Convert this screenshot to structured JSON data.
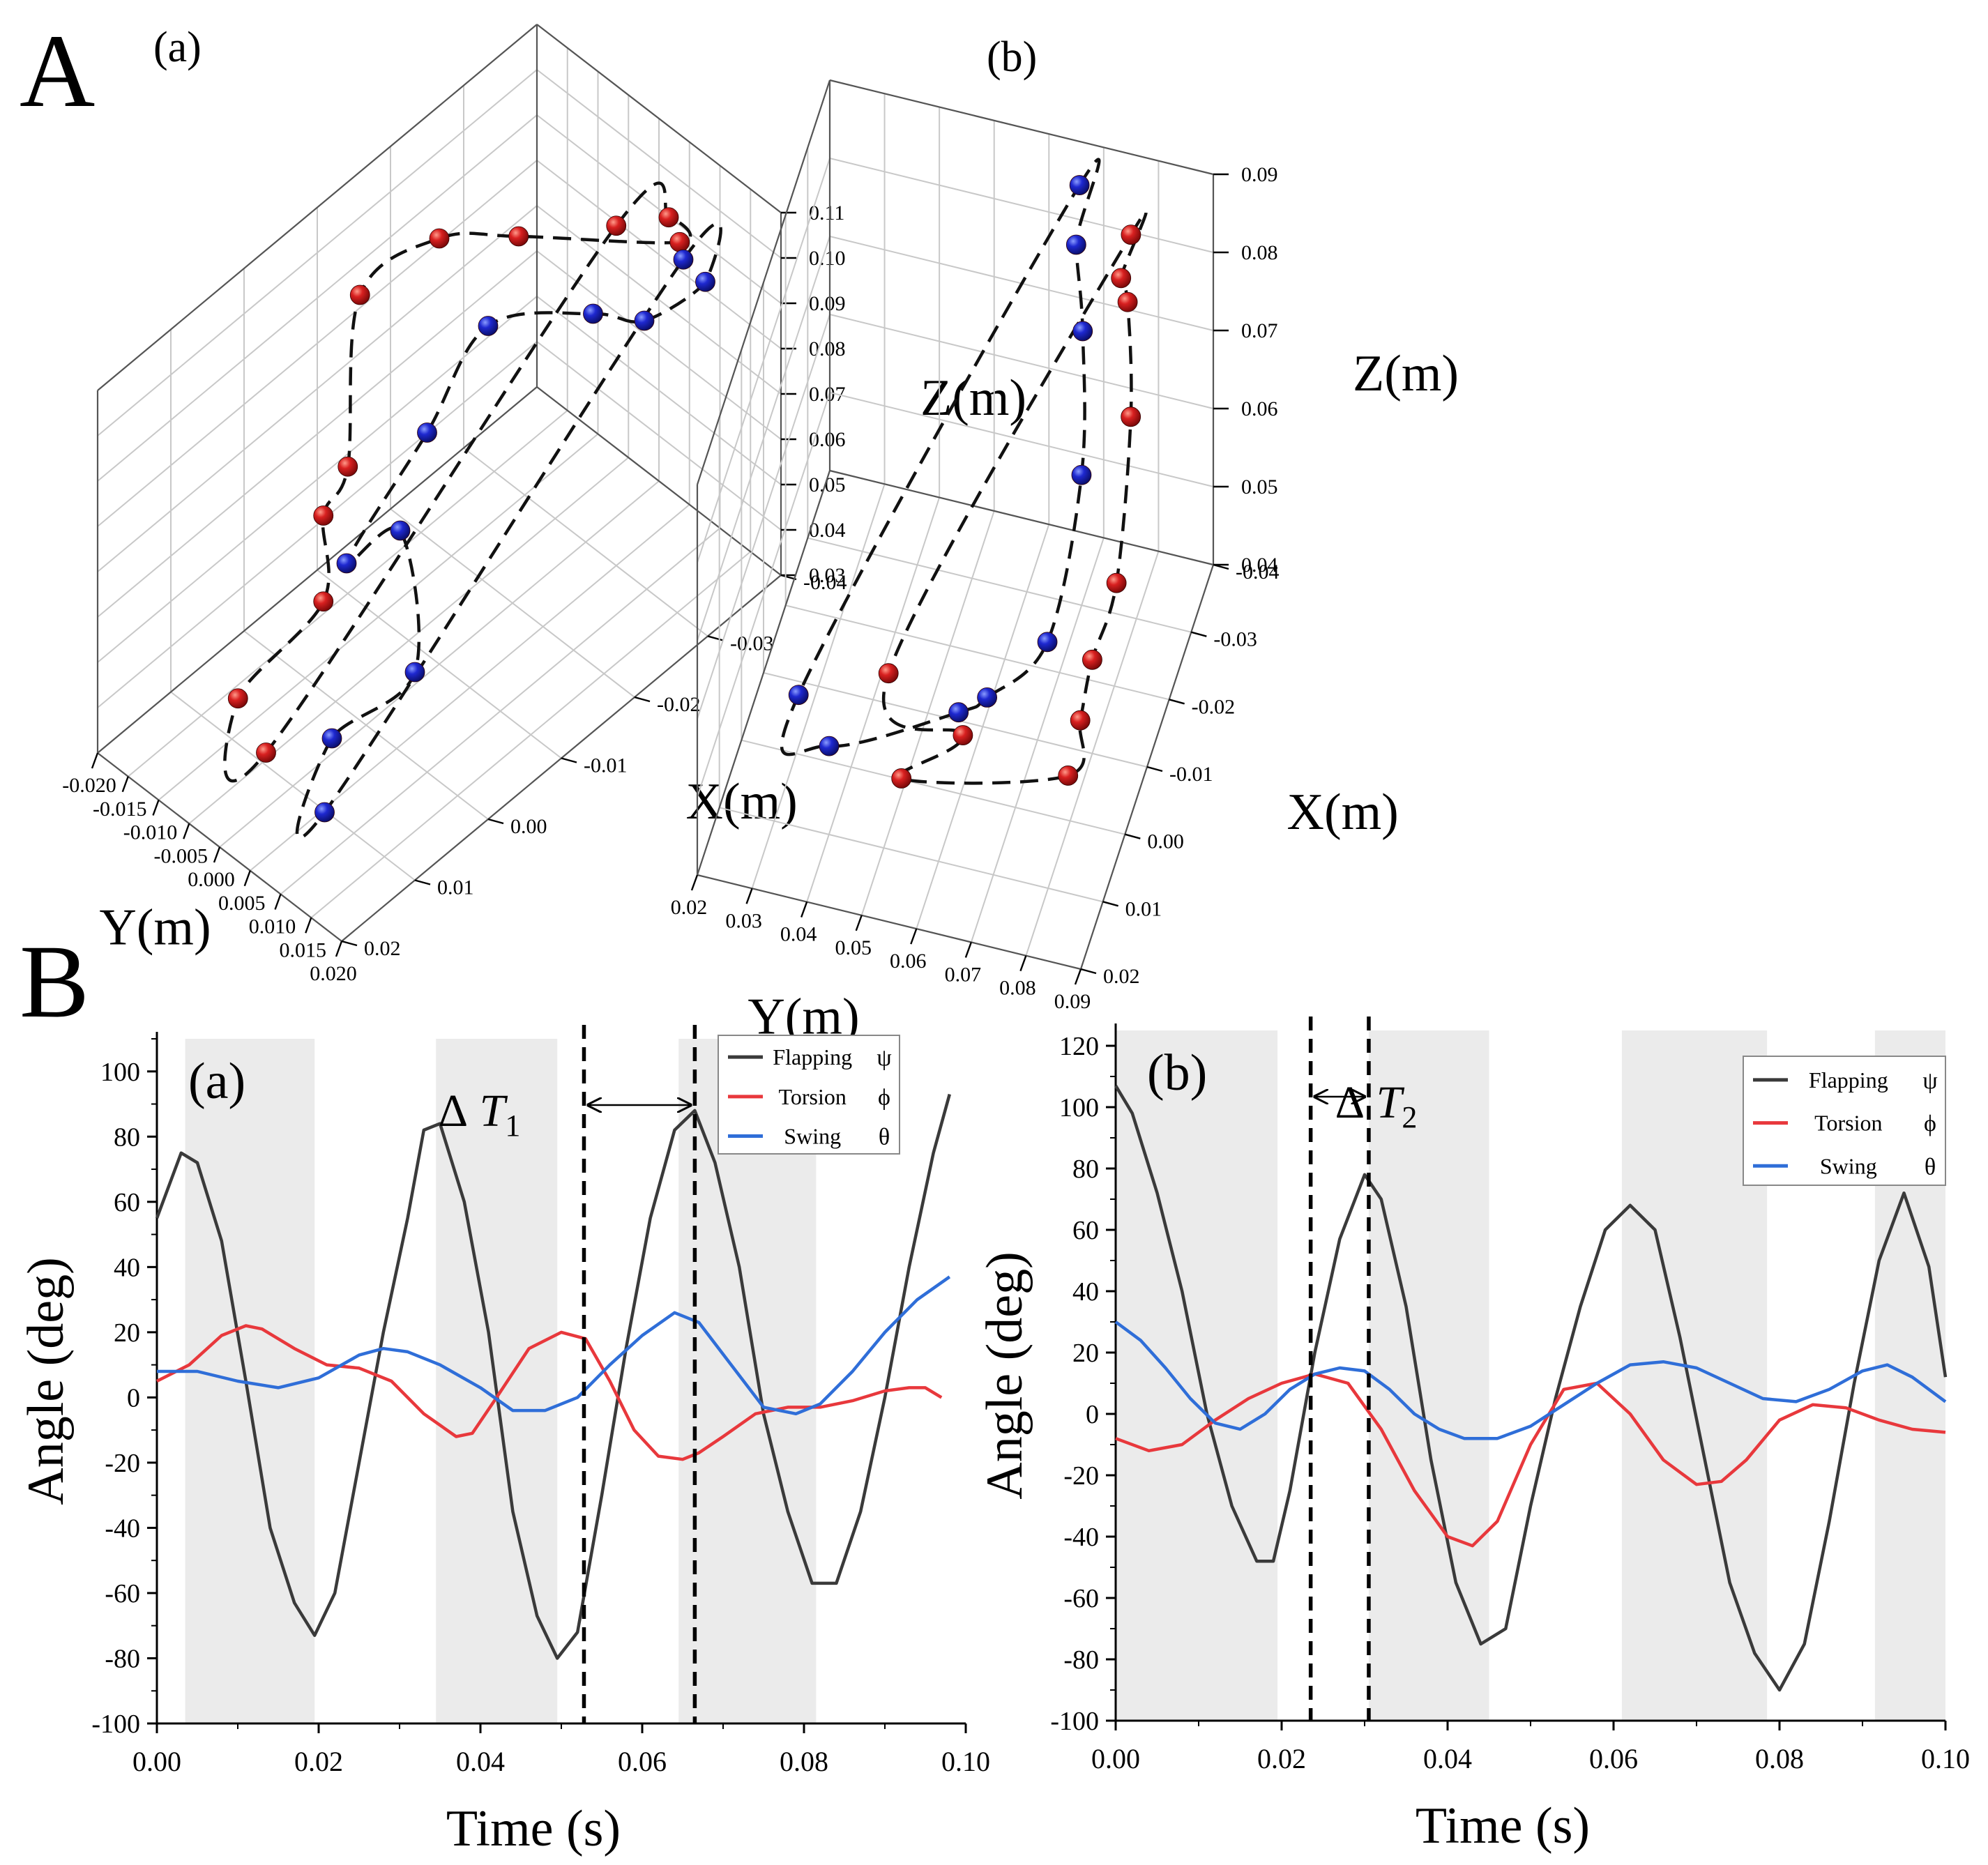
{
  "figure": {
    "panel_A_label": "A",
    "panel_B_label": "B"
  },
  "chart_data": [
    {
      "id": "Aa",
      "type": "scatter3d",
      "sub_label": "(a)",
      "xlabel": "X(m)",
      "ylabel": "Y(m)",
      "zlabel": "Z(m)",
      "z_ticks": [
        "0.03",
        "0.04",
        "0.05",
        "0.06",
        "0.07",
        "0.08",
        "0.09",
        "0.10",
        "0.11"
      ],
      "x_ticks": [
        "-0.04",
        "-0.03",
        "-0.02",
        "-0.01",
        "0.00",
        "0.01",
        "0.02"
      ],
      "y_ticks": [
        "-0.020",
        "-0.015",
        "-0.010",
        "-0.005",
        "0.000",
        "0.005",
        "0.010",
        "0.015",
        "0.020"
      ],
      "xlim": [
        -0.04,
        0.02
      ],
      "ylim": [
        -0.02,
        0.02
      ],
      "zlim": [
        0.03,
        0.11
      ],
      "colors": {
        "red": "#d01818",
        "blue": "#1a22cc"
      },
      "series": [
        {
          "name": "red",
          "points": [
            [
              -0.03,
              0.005,
              0.105
            ],
            [
              -0.033,
              0.01,
              0.108
            ],
            [
              -0.032,
              0.013,
              0.107
            ],
            [
              -0.025,
              -0.005,
              0.099
            ],
            [
              -0.02,
              -0.012,
              0.098
            ],
            [
              -0.015,
              -0.019,
              0.085
            ],
            [
              -0.01,
              -0.015,
              0.058
            ],
            [
              -0.005,
              -0.013,
              0.056
            ],
            [
              0.0,
              -0.007,
              0.05
            ],
            [
              0.01,
              -0.009,
              0.04
            ],
            [
              0.012,
              -0.002,
              0.038
            ]
          ]
        },
        {
          "name": "blue",
          "points": [
            [
              -0.035,
              0.01,
              0.096
            ],
            [
              -0.033,
              0.016,
              0.1
            ],
            [
              -0.028,
              0.012,
              0.094
            ],
            [
              -0.026,
              0.006,
              0.092
            ],
            [
              -0.02,
              -0.004,
              0.087
            ],
            [
              -0.01,
              -0.002,
              0.079
            ],
            [
              -0.004,
              -0.008,
              0.052
            ],
            [
              -0.008,
              -0.004,
              0.058
            ],
            [
              0.0,
              0.008,
              0.05
            ],
            [
              0.008,
              0.004,
              0.042
            ],
            [
              0.014,
              0.01,
              0.04
            ]
          ]
        }
      ]
    },
    {
      "id": "Ab",
      "type": "scatter3d",
      "sub_label": "(b)",
      "xlabel": "X(m)",
      "ylabel": "Y(m)",
      "zlabel": "Z(m)",
      "z_ticks": [
        "0.04",
        "0.05",
        "0.06",
        "0.07",
        "0.08",
        "0.09"
      ],
      "x_ticks": [
        "-0.04",
        "-0.03",
        "-0.02",
        "-0.01",
        "0.00",
        "0.01",
        "0.02"
      ],
      "y_ticks": [
        "0.02",
        "0.03",
        "0.04",
        "0.05",
        "0.06",
        "0.07",
        "0.08",
        "0.09"
      ],
      "xlim": [
        -0.04,
        0.02
      ],
      "ylim": [
        0.02,
        0.09
      ],
      "zlim": [
        0.04,
        0.09
      ],
      "colors": {
        "red": "#d01818",
        "blue": "#1a22cc"
      },
      "series": [
        {
          "name": "red",
          "points": [
            [
              -0.03,
              0.079,
              0.089
            ],
            [
              -0.028,
              0.078,
              0.085
            ],
            [
              -0.026,
              0.08,
              0.084
            ],
            [
              -0.02,
              0.083,
              0.075
            ],
            [
              -0.016,
              0.082,
              0.057
            ],
            [
              -0.01,
              0.08,
              0.052
            ],
            [
              -0.012,
              0.077,
              0.042
            ],
            [
              -0.004,
              0.078,
              0.042
            ],
            [
              0.002,
              0.05,
              0.042
            ],
            [
              -0.006,
              0.058,
              0.042
            ],
            [
              -0.012,
              0.042,
              0.042
            ]
          ]
        },
        {
          "name": "blue",
          "points": [
            [
              -0.034,
              0.068,
              0.09
            ],
            [
              -0.03,
              0.069,
              0.086
            ],
            [
              -0.028,
              0.071,
              0.077
            ],
            [
              -0.02,
              0.074,
              0.066
            ],
            [
              -0.012,
              0.071,
              0.051
            ],
            [
              -0.012,
              0.06,
              0.042
            ],
            [
              -0.009,
              0.056,
              0.042
            ],
            [
              0.0,
              0.036,
              0.042
            ],
            [
              -0.006,
              0.028,
              0.042
            ]
          ]
        }
      ]
    },
    {
      "id": "Ba",
      "type": "line",
      "sub_label": "(a)",
      "xlabel": "Time (s)",
      "ylabel": "Angle (deg)",
      "xlim": [
        0,
        0.1
      ],
      "ylim": [
        -100,
        110
      ],
      "x_ticks": [
        "0.00",
        "0.02",
        "0.04",
        "0.06",
        "0.08",
        "0.10"
      ],
      "y_ticks": [
        "100",
        "80",
        "60",
        "40",
        "20",
        "0",
        "-20",
        "-40",
        "-60",
        "-80",
        "-100"
      ],
      "shaded_intervals": [
        [
          0.0035,
          0.0195
        ],
        [
          0.0345,
          0.0495
        ],
        [
          0.0645,
          0.0815
        ]
      ],
      "vlines": [
        0.0528,
        0.0665
      ],
      "annotation": {
        "label": "Δ",
        "sub": "1",
        "symbol": "T",
        "x_from": 0.0528,
        "x_to": 0.0665
      },
      "series": [
        {
          "name": "Flapping",
          "symbol": "ψ",
          "color": "#3a3a3a",
          "x": [
            0,
            0.003,
            0.005,
            0.008,
            0.011,
            0.014,
            0.017,
            0.0195,
            0.022,
            0.025,
            0.028,
            0.031,
            0.033,
            0.035,
            0.038,
            0.041,
            0.044,
            0.047,
            0.0495,
            0.052,
            0.055,
            0.058,
            0.061,
            0.064,
            0.0665,
            0.069,
            0.072,
            0.075,
            0.078,
            0.081,
            0.084,
            0.087,
            0.09,
            0.093,
            0.096,
            0.098
          ],
          "y": [
            55,
            75,
            72,
            48,
            5,
            -40,
            -63,
            -73,
            -60,
            -20,
            20,
            55,
            82,
            84,
            60,
            20,
            -35,
            -67,
            -80,
            -72,
            -30,
            15,
            55,
            82,
            88,
            72,
            40,
            -5,
            -35,
            -57,
            -57,
            -35,
            0,
            40,
            75,
            93
          ]
        },
        {
          "name": "Torsion",
          "symbol": "ϕ",
          "color": "#e8383c",
          "x": [
            0,
            0.004,
            0.008,
            0.011,
            0.013,
            0.017,
            0.021,
            0.025,
            0.029,
            0.033,
            0.037,
            0.039,
            0.042,
            0.046,
            0.05,
            0.053,
            0.056,
            0.059,
            0.062,
            0.065,
            0.067,
            0.07,
            0.074,
            0.078,
            0.082,
            0.086,
            0.09,
            0.093,
            0.095,
            0.097
          ],
          "y": [
            5,
            10,
            19,
            22,
            21,
            15,
            10,
            9,
            5,
            -5,
            -12,
            -11,
            0,
            15,
            20,
            18,
            5,
            -10,
            -18,
            -19,
            -17,
            -12,
            -5,
            -3,
            -3,
            -1,
            2,
            3,
            3,
            0
          ]
        },
        {
          "name": "Swing",
          "symbol": "θ",
          "color": "#2f6ed8",
          "x": [
            0,
            0.005,
            0.01,
            0.015,
            0.02,
            0.025,
            0.028,
            0.031,
            0.035,
            0.04,
            0.044,
            0.048,
            0.052,
            0.056,
            0.06,
            0.064,
            0.067,
            0.071,
            0.075,
            0.079,
            0.082,
            0.086,
            0.09,
            0.094,
            0.098
          ],
          "y": [
            8,
            8,
            5,
            3,
            6,
            13,
            15,
            14,
            10,
            3,
            -4,
            -4,
            0,
            10,
            19,
            26,
            23,
            10,
            -3,
            -5,
            -2,
            8,
            20,
            30,
            37
          ]
        }
      ]
    },
    {
      "id": "Bb",
      "type": "line",
      "sub_label": "(b)",
      "xlabel": "Time (s)",
      "ylabel": "Angle (deg)",
      "xlim": [
        0,
        0.1
      ],
      "ylim": [
        -100,
        125
      ],
      "x_ticks": [
        "0.00",
        "0.02",
        "0.04",
        "0.06",
        "0.08",
        "0.10"
      ],
      "y_ticks": [
        "120",
        "100",
        "80",
        "60",
        "40",
        "20",
        "0",
        "-20",
        "-40",
        "-60",
        "-80",
        "-100"
      ],
      "shaded_intervals": [
        [
          0,
          0.0195
        ],
        [
          0.0305,
          0.045
        ],
        [
          0.061,
          0.0785
        ],
        [
          0.0915,
          0.1
        ]
      ],
      "vlines": [
        0.0235,
        0.0305
      ],
      "annotation": {
        "label": "Δ",
        "sub": "2",
        "symbol": "T",
        "x_from": 0.0235,
        "x_to": 0.0305
      },
      "series": [
        {
          "name": "Flapping",
          "symbol": "ψ",
          "color": "#3a3a3a",
          "x": [
            0,
            0.002,
            0.005,
            0.008,
            0.011,
            0.014,
            0.017,
            0.019,
            0.021,
            0.024,
            0.027,
            0.03,
            0.032,
            0.035,
            0.038,
            0.041,
            0.044,
            0.047,
            0.05,
            0.053,
            0.056,
            0.059,
            0.062,
            0.065,
            0.068,
            0.071,
            0.074,
            0.077,
            0.08,
            0.083,
            0.086,
            0.089,
            0.092,
            0.095,
            0.098,
            0.1
          ],
          "y": [
            107,
            98,
            72,
            40,
            0,
            -30,
            -48,
            -48,
            -25,
            20,
            57,
            78,
            70,
            35,
            -15,
            -55,
            -75,
            -70,
            -30,
            5,
            35,
            60,
            68,
            60,
            25,
            -15,
            -55,
            -78,
            -90,
            -75,
            -35,
            10,
            50,
            72,
            48,
            12
          ]
        },
        {
          "name": "Torsion",
          "symbol": "ϕ",
          "color": "#e8383c",
          "x": [
            0,
            0.004,
            0.008,
            0.012,
            0.016,
            0.02,
            0.024,
            0.028,
            0.032,
            0.036,
            0.04,
            0.043,
            0.046,
            0.05,
            0.054,
            0.058,
            0.062,
            0.066,
            0.07,
            0.073,
            0.076,
            0.08,
            0.084,
            0.088,
            0.092,
            0.096,
            0.1
          ],
          "y": [
            -8,
            -12,
            -10,
            -2,
            5,
            10,
            13,
            10,
            -5,
            -25,
            -40,
            -43,
            -35,
            -10,
            8,
            10,
            0,
            -15,
            -23,
            -22,
            -15,
            -2,
            3,
            2,
            -2,
            -5,
            -6
          ]
        },
        {
          "name": "Swing",
          "symbol": "θ",
          "color": "#2f6ed8",
          "x": [
            0,
            0.003,
            0.006,
            0.009,
            0.012,
            0.015,
            0.018,
            0.021,
            0.024,
            0.027,
            0.03,
            0.033,
            0.036,
            0.039,
            0.042,
            0.046,
            0.05,
            0.054,
            0.058,
            0.062,
            0.066,
            0.07,
            0.074,
            0.078,
            0.082,
            0.086,
            0.09,
            0.093,
            0.096,
            0.1
          ],
          "y": [
            30,
            24,
            15,
            5,
            -3,
            -5,
            0,
            8,
            13,
            15,
            14,
            8,
            0,
            -5,
            -8,
            -8,
            -4,
            3,
            10,
            16,
            17,
            15,
            10,
            5,
            4,
            8,
            14,
            16,
            12,
            4
          ]
        }
      ]
    }
  ]
}
